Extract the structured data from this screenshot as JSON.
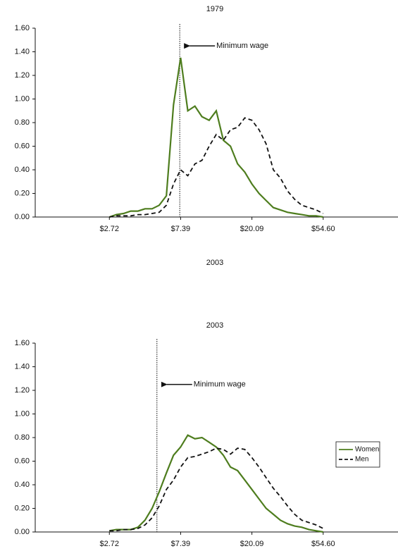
{
  "chart_data": [
    {
      "type": "line",
      "title": "1979",
      "caption": "2003",
      "xscale": "log",
      "grid": false,
      "x": [
        2.72,
        3.0,
        3.32,
        3.67,
        4.06,
        4.48,
        4.95,
        5.47,
        6.05,
        6.69,
        7.39,
        8.17,
        9.03,
        9.97,
        11.02,
        12.18,
        13.46,
        14.88,
        16.44,
        18.17,
        20.09,
        22.2,
        24.53,
        27.11,
        29.96,
        33.12,
        36.6,
        40.45,
        44.7,
        49.4,
        54.6
      ],
      "series": [
        {
          "color": "#4e7d1e",
          "dash": false,
          "values": [
            0.0,
            0.02,
            0.03,
            0.05,
            0.05,
            0.07,
            0.07,
            0.1,
            0.18,
            0.95,
            1.35,
            0.9,
            0.94,
            0.85,
            0.82,
            0.9,
            0.65,
            0.6,
            0.45,
            0.38,
            0.28,
            0.2,
            0.14,
            0.08,
            0.06,
            0.04,
            0.03,
            0.02,
            0.01,
            0.01,
            0.0
          ]
        },
        {
          "color": "#111111",
          "dash": true,
          "values": [
            0.0,
            0.01,
            0.01,
            0.01,
            0.02,
            0.02,
            0.03,
            0.04,
            0.1,
            0.28,
            0.4,
            0.35,
            0.45,
            0.48,
            0.6,
            0.7,
            0.65,
            0.74,
            0.76,
            0.84,
            0.82,
            0.74,
            0.62,
            0.4,
            0.33,
            0.22,
            0.15,
            0.1,
            0.08,
            0.06,
            0.03
          ]
        }
      ],
      "vline": {
        "x": 7.3,
        "label": "Minimum wage"
      },
      "xlim": [
        1,
        148.41
      ],
      "xticks": [
        {
          "value": 2.72,
          "label": "$2.72"
        },
        {
          "value": 7.39,
          "label": "$7.39"
        },
        {
          "value": 20.09,
          "label": "$20.09"
        },
        {
          "value": 54.6,
          "label": "$54.60"
        }
      ],
      "ylim": [
        0,
        1.6
      ],
      "yticks": [
        {
          "value": 0,
          "label": "0.00"
        },
        {
          "value": 0.2,
          "label": "0.20"
        },
        {
          "value": 0.4,
          "label": "0.40"
        },
        {
          "value": 0.6,
          "label": "0.60"
        },
        {
          "value": 0.8,
          "label": "0.80"
        },
        {
          "value": 1.0,
          "label": "1.00"
        },
        {
          "value": 1.2,
          "label": "1.20"
        },
        {
          "value": 1.4,
          "label": "1.40"
        },
        {
          "value": 1.6,
          "label": "1.60"
        }
      ]
    },
    {
      "type": "line",
      "title": "2003",
      "xscale": "log",
      "grid": false,
      "legend": "right",
      "x": [
        2.72,
        3.0,
        3.32,
        3.67,
        4.06,
        4.48,
        4.95,
        5.47,
        6.05,
        6.69,
        7.39,
        8.17,
        9.03,
        9.97,
        11.02,
        12.18,
        13.46,
        14.88,
        16.44,
        18.17,
        20.09,
        22.2,
        24.53,
        27.11,
        29.96,
        33.12,
        36.6,
        40.45,
        44.7,
        49.4,
        54.6
      ],
      "series": [
        {
          "name": "Women",
          "color": "#4e7d1e",
          "dash": false,
          "values": [
            0.01,
            0.02,
            0.02,
            0.02,
            0.04,
            0.1,
            0.2,
            0.34,
            0.5,
            0.65,
            0.72,
            0.82,
            0.79,
            0.8,
            0.76,
            0.72,
            0.65,
            0.55,
            0.52,
            0.44,
            0.36,
            0.28,
            0.2,
            0.15,
            0.1,
            0.07,
            0.05,
            0.04,
            0.02,
            0.01,
            0.0
          ]
        },
        {
          "name": "Men",
          "color": "#111111",
          "dash": true,
          "values": [
            0.01,
            0.01,
            0.02,
            0.02,
            0.03,
            0.06,
            0.12,
            0.22,
            0.36,
            0.44,
            0.55,
            0.63,
            0.64,
            0.66,
            0.68,
            0.71,
            0.7,
            0.66,
            0.71,
            0.7,
            0.63,
            0.55,
            0.46,
            0.37,
            0.3,
            0.22,
            0.15,
            0.1,
            0.08,
            0.06,
            0.03
          ]
        }
      ],
      "vline": {
        "x": 5.3,
        "label": "Minimum wage"
      },
      "xlim": [
        1,
        148.41
      ],
      "xticks": [
        {
          "value": 2.72,
          "label": "$2.72"
        },
        {
          "value": 7.39,
          "label": "$7.39"
        },
        {
          "value": 20.09,
          "label": "$20.09"
        },
        {
          "value": 54.6,
          "label": "$54.60"
        }
      ],
      "ylim": [
        0,
        1.6
      ],
      "yticks": [
        {
          "value": 0,
          "label": "0.00"
        },
        {
          "value": 0.2,
          "label": "0.20"
        },
        {
          "value": 0.4,
          "label": "0.40"
        },
        {
          "value": 0.6,
          "label": "0.60"
        },
        {
          "value": 0.8,
          "label": "0.80"
        },
        {
          "value": 1.0,
          "label": "1.00"
        },
        {
          "value": 1.2,
          "label": "1.20"
        },
        {
          "value": 1.4,
          "label": "1.40"
        },
        {
          "value": 1.6,
          "label": "1.60"
        }
      ]
    }
  ]
}
